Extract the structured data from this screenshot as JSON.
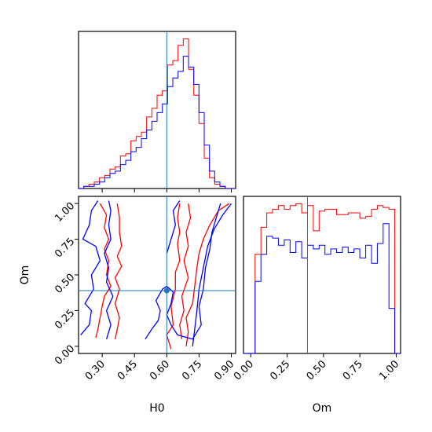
{
  "chart_data": {
    "type": "corner",
    "parameters": [
      "H0",
      "Om"
    ],
    "truths": {
      "H0": 0.6,
      "Om": 0.39
    },
    "truth_color": "#1f77b4",
    "series": [
      {
        "color": "#ff0000"
      },
      {
        "color": "#0000ff"
      }
    ],
    "panels": {
      "h0_hist": {
        "type": "histogram",
        "xlim": [
          0.19,
          0.92
        ],
        "bin_edges": [
          0.19,
          0.2143,
          0.2387,
          0.263,
          0.2873,
          0.3117,
          0.336,
          0.3603,
          0.3847,
          0.409,
          0.4333,
          0.4577,
          0.482,
          0.5063,
          0.5307,
          0.555,
          0.5793,
          0.6037,
          0.628,
          0.6523,
          0.6767,
          0.701,
          0.7253,
          0.7497,
          0.774,
          0.7983,
          0.8227,
          0.847,
          0.8713,
          0.8957,
          0.92
        ],
        "series_counts": [
          [
            0,
            1,
            2,
            3,
            5,
            6,
            9,
            10,
            15,
            16,
            22,
            24,
            26,
            33,
            37,
            43,
            45,
            57,
            59,
            66,
            69,
            55,
            43,
            30,
            14,
            5,
            2,
            1,
            0,
            0
          ],
          [
            0,
            1,
            1,
            2,
            3,
            5,
            7,
            8,
            11,
            13,
            17,
            19,
            23,
            27,
            31,
            35,
            39,
            47,
            51,
            54,
            61,
            56,
            48,
            35,
            20,
            8,
            3,
            1,
            0,
            0
          ]
        ]
      },
      "om_hist": {
        "type": "histogram",
        "xlim": [
          -0.05,
          1.03
        ],
        "bin_edges": [
          -0.05,
          -0.01,
          0.03,
          0.07,
          0.11,
          0.15,
          0.19,
          0.23,
          0.27,
          0.31,
          0.35,
          0.39,
          0.43,
          0.47,
          0.51,
          0.55,
          0.59,
          0.63,
          0.67,
          0.71,
          0.75,
          0.79,
          0.83,
          0.87,
          0.91,
          0.95,
          0.99,
          1.03
        ],
        "series_counts": [
          [
            0,
            0,
            55,
            70,
            78,
            80,
            82,
            80,
            82,
            83,
            78,
            82,
            68,
            79,
            80,
            80,
            77,
            77,
            78,
            78,
            75,
            76,
            80,
            82,
            81,
            80,
            0
          ],
          [
            0,
            0,
            40,
            55,
            65,
            64,
            60,
            63,
            56,
            62,
            53,
            60,
            58,
            60,
            55,
            58,
            56,
            59,
            56,
            58,
            53,
            60,
            50,
            61,
            72,
            25,
            0
          ]
        ]
      },
      "joint": {
        "type": "contour",
        "xlim": [
          0.19,
          0.92
        ],
        "ylim": [
          -0.05,
          1.05
        ],
        "x_label": "H0",
        "y_label": "Om",
        "x_ticks": [
          "0.30",
          "0.45",
          "0.60",
          "0.75",
          "0.90"
        ],
        "y_ticks": [
          "0.00",
          "0.25",
          "0.50",
          "0.75",
          "1.00"
        ],
        "om_ticks": [
          "0.00",
          "0.25",
          "0.50",
          "0.75",
          "1.00"
        ],
        "red_contours": [
          [
            [
              0.27,
              0.06
            ],
            [
              0.28,
              0.12
            ],
            [
              0.29,
              0.2
            ],
            [
              0.3,
              0.28
            ],
            [
              0.31,
              0.35
            ],
            [
              0.34,
              0.42
            ],
            [
              0.32,
              0.5
            ],
            [
              0.33,
              0.6
            ],
            [
              0.31,
              0.68
            ],
            [
              0.33,
              0.75
            ],
            [
              0.31,
              0.83
            ],
            [
              0.32,
              0.92
            ],
            [
              0.29,
              1.0
            ]
          ],
          [
            [
              0.36,
              0.05
            ],
            [
              0.37,
              0.12
            ],
            [
              0.38,
              0.2
            ],
            [
              0.36,
              0.3
            ],
            [
              0.38,
              0.4
            ],
            [
              0.36,
              0.48
            ],
            [
              0.39,
              0.56
            ],
            [
              0.37,
              0.63
            ],
            [
              0.39,
              0.7
            ],
            [
              0.38,
              0.8
            ],
            [
              0.38,
              0.9
            ],
            [
              0.37,
              1.0
            ]
          ],
          [
            [
              0.62,
              -0.02
            ],
            [
              0.6,
              0.08
            ],
            [
              0.63,
              0.15
            ],
            [
              0.62,
              0.28
            ],
            [
              0.64,
              0.4
            ],
            [
              0.64,
              0.52
            ],
            [
              0.66,
              0.6
            ],
            [
              0.65,
              0.72
            ],
            [
              0.66,
              0.8
            ],
            [
              0.65,
              0.9
            ],
            [
              0.66,
              1.0
            ]
          ],
          [
            [
              0.69,
              0.0
            ],
            [
              0.7,
              0.1
            ],
            [
              0.69,
              0.2
            ],
            [
              0.72,
              0.3
            ],
            [
              0.73,
              0.42
            ],
            [
              0.74,
              0.55
            ],
            [
              0.75,
              0.65
            ],
            [
              0.77,
              0.75
            ],
            [
              0.8,
              0.85
            ],
            [
              0.84,
              0.95
            ],
            [
              0.89,
              1.0
            ]
          ],
          [
            [
              0.67,
              0.05
            ],
            [
              0.66,
              0.15
            ],
            [
              0.68,
              0.25
            ],
            [
              0.67,
              0.35
            ],
            [
              0.7,
              0.48
            ],
            [
              0.68,
              0.6
            ],
            [
              0.7,
              0.7
            ],
            [
              0.69,
              0.8
            ],
            [
              0.71,
              0.9
            ],
            [
              0.7,
              1.0
            ]
          ]
        ],
        "blue_contours": [
          [
            [
              0.2,
              0.08
            ],
            [
              0.24,
              0.15
            ],
            [
              0.25,
              0.25
            ],
            [
              0.22,
              0.3
            ],
            [
              0.26,
              0.4
            ],
            [
              0.25,
              0.5
            ],
            [
              0.29,
              0.6
            ],
            [
              0.27,
              0.7
            ],
            [
              0.21,
              0.75
            ],
            [
              0.24,
              0.85
            ],
            [
              0.25,
              0.95
            ],
            [
              0.28,
              1.02
            ]
          ],
          [
            [
              0.32,
              0.05
            ],
            [
              0.34,
              0.15
            ],
            [
              0.32,
              0.25
            ],
            [
              0.35,
              0.35
            ],
            [
              0.32,
              0.45
            ],
            [
              0.33,
              0.55
            ],
            [
              0.31,
              0.65
            ],
            [
              0.34,
              0.75
            ],
            [
              0.33,
              0.85
            ],
            [
              0.34,
              0.95
            ],
            [
              0.33,
              1.02
            ]
          ],
          [
            [
              0.5,
              0.05
            ],
            [
              0.53,
              0.12
            ],
            [
              0.56,
              0.18
            ],
            [
              0.57,
              0.25
            ],
            [
              0.55,
              0.32
            ],
            [
              0.58,
              0.4
            ],
            [
              0.6,
              0.42
            ],
            [
              0.63,
              0.38
            ],
            [
              0.62,
              0.3
            ],
            [
              0.6,
              0.22
            ],
            [
              0.62,
              0.15
            ],
            [
              0.65,
              0.08
            ],
            [
              0.72,
              0.05
            ],
            [
              0.76,
              0.15
            ],
            [
              0.75,
              0.28
            ],
            [
              0.77,
              0.4
            ],
            [
              0.78,
              0.55
            ],
            [
              0.8,
              0.68
            ],
            [
              0.81,
              0.8
            ],
            [
              0.83,
              0.9
            ],
            [
              0.85,
              1.0
            ]
          ],
          [
            [
              0.6,
              0.65
            ],
            [
              0.62,
              0.75
            ],
            [
              0.64,
              0.85
            ],
            [
              0.63,
              0.95
            ],
            [
              0.66,
              1.02
            ]
          ],
          [
            [
              0.72,
              0.0
            ],
            [
              0.73,
              0.12
            ],
            [
              0.74,
              0.25
            ],
            [
              0.75,
              0.4
            ],
            [
              0.77,
              0.55
            ],
            [
              0.79,
              0.7
            ],
            [
              0.82,
              0.82
            ],
            [
              0.86,
              0.92
            ],
            [
              0.9,
              1.0
            ]
          ]
        ]
      }
    }
  }
}
